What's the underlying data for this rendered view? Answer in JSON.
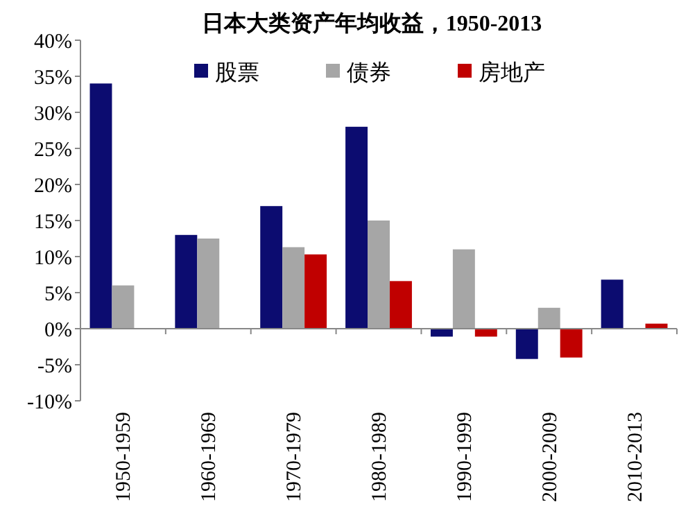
{
  "chart_data": {
    "type": "bar",
    "title": "日本大类资产年均收益，1950-2013",
    "categories": [
      "1950-1959",
      "1960-1969",
      "1970-1979",
      "1980-1989",
      "1990-1999",
      "2000-2009",
      "2010-2013"
    ],
    "series": [
      {
        "name": "股票",
        "color": "#0c0c70",
        "values": [
          34,
          13,
          17,
          28,
          -1.1,
          -4.2,
          6.8
        ]
      },
      {
        "name": "债券",
        "color": "#a6a6a6",
        "values": [
          6,
          12.5,
          11.3,
          15,
          11,
          2.9,
          null
        ]
      },
      {
        "name": "房地产",
        "color": "#c00000",
        "values": [
          null,
          null,
          10.3,
          6.6,
          -1.1,
          -4,
          0.7
        ]
      }
    ],
    "ylim": [
      -10,
      40
    ],
    "yticks": [
      {
        "value": -10,
        "label": "-10%"
      },
      {
        "value": -5,
        "label": "-5%"
      },
      {
        "value": 0,
        "label": "0%"
      },
      {
        "value": 5,
        "label": "5%"
      },
      {
        "value": 10,
        "label": "10%"
      },
      {
        "value": 15,
        "label": "15%"
      },
      {
        "value": 20,
        "label": "20%"
      },
      {
        "value": 25,
        "label": "25%"
      },
      {
        "value": 30,
        "label": "30%"
      },
      {
        "value": 35,
        "label": "35%"
      },
      {
        "value": 40,
        "label": "40%"
      }
    ],
    "legend": "top"
  }
}
